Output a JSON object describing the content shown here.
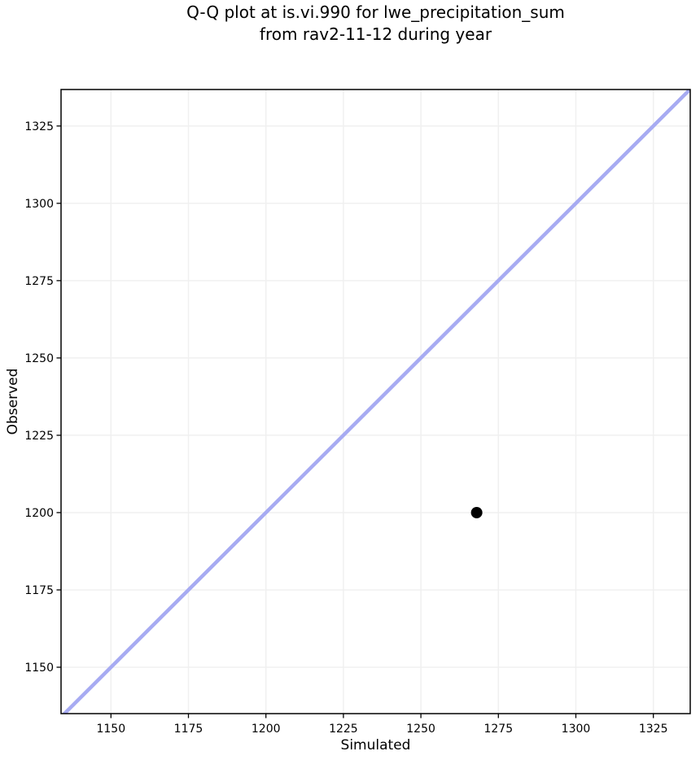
{
  "figure": {
    "background": "#ffffff"
  },
  "chart_data": {
    "type": "scatter",
    "title": "Q-Q plot at is.vi.990 for lwe_precipitation_sum\nfrom rav2-11-12 during year",
    "title_lines": [
      "Q-Q plot at is.vi.990 for lwe_precipitation_sum",
      "from rav2-11-12 during year"
    ],
    "xlabel": "Simulated",
    "ylabel": "Observed",
    "xlim": [
      1133.9,
      1336.9
    ],
    "ylim": [
      1135.0,
      1336.8
    ],
    "xticks": [
      1150,
      1175,
      1200,
      1225,
      1250,
      1275,
      1300,
      1325
    ],
    "yticks": [
      1150,
      1175,
      1200,
      1225,
      1250,
      1275,
      1300,
      1325
    ],
    "grid": true,
    "legend": false,
    "series": [
      {
        "name": "identity-line",
        "type": "line",
        "x": [
          1130,
          1340
        ],
        "y": [
          1130,
          1340
        ],
        "color": "#a7abf2",
        "width": 4.5
      },
      {
        "name": "qq-points",
        "type": "scatter",
        "points": [
          {
            "x": 1268,
            "y": 1200
          }
        ],
        "color": "#000000",
        "radius": 7
      }
    ],
    "colors": {
      "grid": "#f0f0f0",
      "spine": "#000000",
      "tick": "#000000",
      "text": "#000000",
      "background": "#ffffff"
    }
  }
}
